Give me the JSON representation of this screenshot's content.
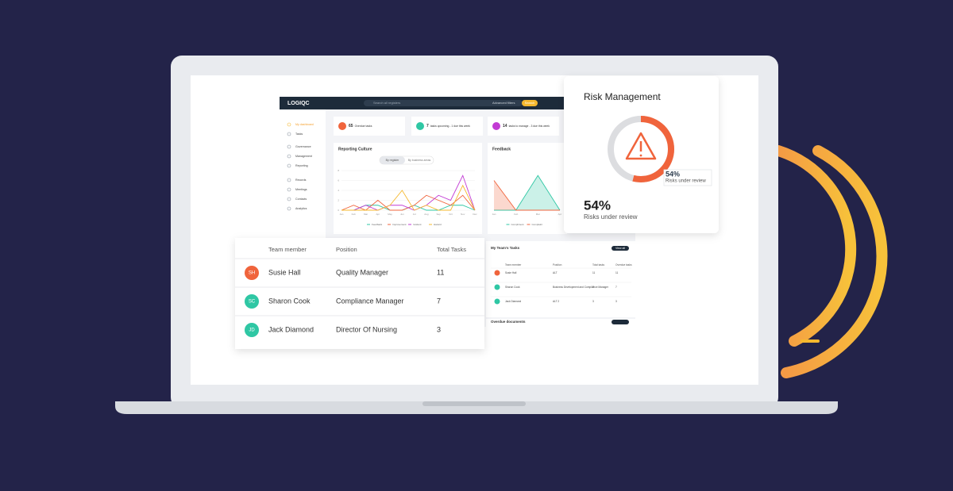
{
  "logo": "LOGIQC",
  "search_placeholder": "Search all registers",
  "advanced_filters": "Advanced filters",
  "search_button": "Search",
  "sidebar": [
    "My dashboard",
    "Tasks",
    "Governance",
    "Management",
    "Reporting",
    "Records",
    "Meetings",
    "Contacts",
    "Analytics"
  ],
  "stats": [
    {
      "value": 65,
      "label": "Overdue tasks",
      "color": "#f0643c"
    },
    {
      "value": 7,
      "label": "tasks upcoming - 1 due this week",
      "color": "#2fc7a4"
    },
    {
      "value": 14,
      "label": "tasks to manage - 3 due this week",
      "color": "#c23bd4"
    }
  ],
  "reporting_culture": {
    "title": "Reporting Culture",
    "tabs": [
      "By register",
      "By business areas"
    ],
    "categories": [
      "Jan",
      "Feb",
      "Mar",
      "Apr",
      "May",
      "Jun",
      "Jul",
      "Aug",
      "Sep",
      "Oct",
      "Nov",
      "Dec"
    ],
    "ylim": [
      0,
      8
    ],
    "yticks": [
      0,
      2,
      4,
      6,
      8
    ],
    "series": [
      {
        "name": "Feedback",
        "color": "#2fc7a4",
        "values": [
          0,
          0,
          1,
          1,
          0,
          0,
          1,
          0,
          0,
          1,
          1,
          0
        ]
      },
      {
        "name": "Improvement",
        "color": "#f0643c",
        "values": [
          0,
          1,
          0,
          2,
          0,
          0,
          1,
          3,
          2,
          1,
          3,
          0
        ]
      },
      {
        "name": "Incident",
        "color": "#c23bd4",
        "values": [
          0,
          0,
          1,
          0,
          1,
          1,
          0,
          1,
          3,
          2,
          7,
          0
        ]
      },
      {
        "name": "Hazard",
        "color": "#f5b82e",
        "values": [
          0,
          0,
          0,
          0,
          1,
          4,
          0,
          1,
          0,
          0,
          5,
          0
        ]
      }
    ]
  },
  "feedback": {
    "title": "Feedback",
    "categories": [
      "Jan",
      "Feb",
      "Mar",
      "Apr"
    ],
    "ylim": [
      0,
      8
    ],
    "series": [
      {
        "name": "Compliment",
        "color": "#2fc7a4",
        "values": [
          0,
          0,
          7,
          0
        ]
      },
      {
        "name": "Complaint",
        "color": "#f0643c",
        "values": [
          6,
          0,
          0,
          0
        ]
      }
    ]
  },
  "team_tasks": {
    "title": "My Team's Tasks",
    "button": "View all",
    "columns": [
      "Team member",
      "Position",
      "Total tasks",
      "Overdue tasks"
    ],
    "rows": [
      [
        "Susie Hall",
        "ALT",
        11,
        11
      ],
      [
        "Sharon Cook",
        "Business Development and Compliance Manager",
        7,
        7
      ],
      [
        "Jack Diamond",
        "ALT 2",
        3,
        3
      ]
    ]
  },
  "documents": {
    "title": "Overdue documents"
  },
  "risk": {
    "title": "Risk Management",
    "value": 54,
    "value_label": "54%",
    "caption": "Risks under review"
  },
  "team_table": {
    "columns": [
      "Team member",
      "Position",
      "Total Tasks"
    ],
    "rows": [
      {
        "initials": "SH",
        "color": "#f0643c",
        "name": "Susie Hall",
        "position": "Quality Manager",
        "tasks": 11
      },
      {
        "initials": "SC",
        "color": "#2fc7a4",
        "name": "Sharon Cook",
        "position": "Compliance Manager",
        "tasks": 7
      },
      {
        "initials": "JD",
        "color": "#2fc7a4",
        "name": "Jack Diamond",
        "position": "Director Of Nursing",
        "tasks": 3
      }
    ]
  }
}
